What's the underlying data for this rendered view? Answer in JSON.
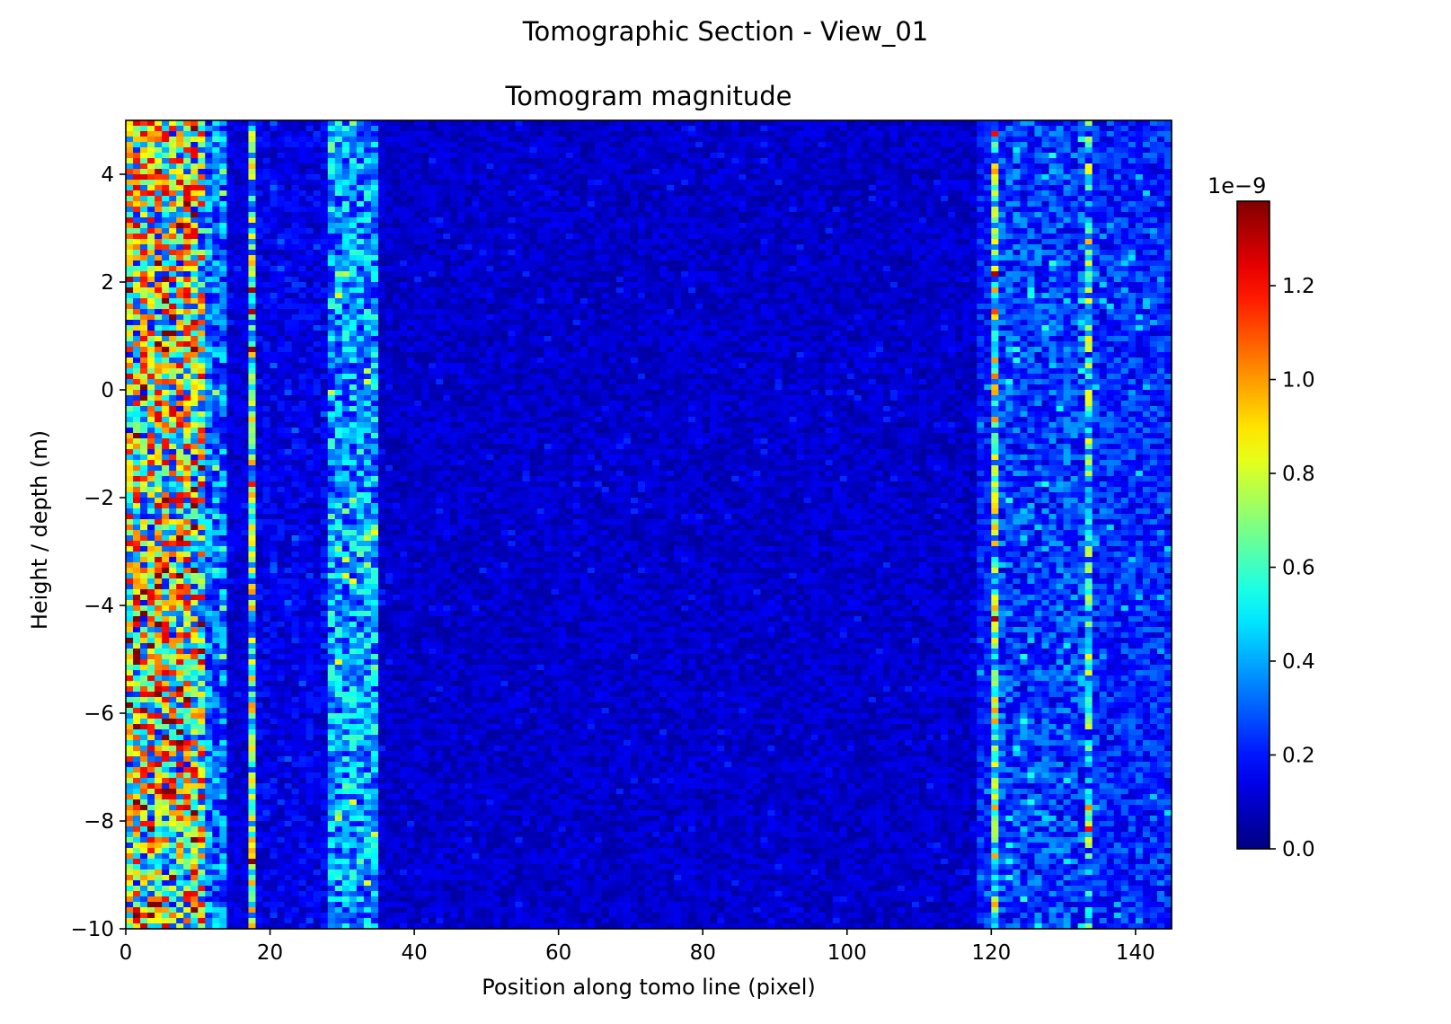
{
  "figure": {
    "suptitle": "Tomographic Section - View_01"
  },
  "chart_data": {
    "type": "heatmap",
    "title": "Tomogram magnitude",
    "xlabel": "Position along tomo line (pixel)",
    "ylabel": "Height / depth (m)",
    "xlim": [
      0,
      145
    ],
    "ylim": [
      -10,
      5
    ],
    "x_ticks": [
      0,
      20,
      40,
      60,
      80,
      100,
      120,
      140
    ],
    "x_tick_labels": [
      "0",
      "20",
      "40",
      "60",
      "80",
      "100",
      "120",
      "140"
    ],
    "y_ticks": [
      4,
      2,
      0,
      -2,
      -4,
      -6,
      -8,
      -10
    ],
    "y_tick_labels": [
      "4",
      "2",
      "0",
      "−2",
      "−4",
      "−6",
      "−8",
      "−10"
    ],
    "grid": false,
    "colormap": "jet",
    "columns": 145,
    "rows": 150,
    "colorbar": {
      "range": [
        0,
        1.38
      ],
      "scale_label": "1e−9",
      "ticks": [
        0.0,
        0.2,
        0.4,
        0.6,
        0.8,
        1.0,
        1.2
      ],
      "tick_labels": [
        "0.0",
        "0.2",
        "0.4",
        "0.6",
        "0.8",
        "1.0",
        "1.2"
      ]
    },
    "column_profile": {
      "description_units": "mean magnitude per x-range (x1e-9)",
      "segments": [
        {
          "x": [
            0,
            11
          ],
          "mean": 0.72,
          "spread": 0.55
        },
        {
          "x": [
            11,
            14
          ],
          "mean": 0.32,
          "spread": 0.2
        },
        {
          "x": [
            14,
            17
          ],
          "mean": 0.12,
          "spread": 0.06
        },
        {
          "x": [
            17,
            18
          ],
          "mean": 0.62,
          "spread": 0.4
        },
        {
          "x": [
            18,
            28
          ],
          "mean": 0.14,
          "spread": 0.08
        },
        {
          "x": [
            28,
            35
          ],
          "mean": 0.38,
          "spread": 0.22
        },
        {
          "x": [
            35,
            118
          ],
          "mean": 0.1,
          "spread": 0.06
        },
        {
          "x": [
            118,
            120
          ],
          "mean": 0.2,
          "spread": 0.1
        },
        {
          "x": [
            120,
            121
          ],
          "mean": 0.62,
          "spread": 0.4
        },
        {
          "x": [
            121,
            133
          ],
          "mean": 0.25,
          "spread": 0.15
        },
        {
          "x": [
            133,
            134
          ],
          "mean": 0.5,
          "spread": 0.35
        },
        {
          "x": [
            134,
            145
          ],
          "mean": 0.22,
          "spread": 0.12
        }
      ]
    }
  }
}
